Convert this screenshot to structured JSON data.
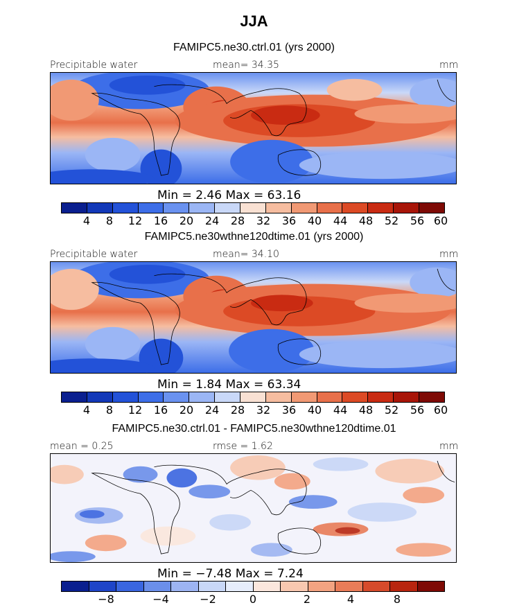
{
  "title": "JJA",
  "colors": {
    "sequential": [
      "#0a1f8f",
      "#1238b8",
      "#2352d8",
      "#3d6ee8",
      "#6a92f0",
      "#9bb6f5",
      "#c9d8f8",
      "#f9e1d3",
      "#f6bda0",
      "#f19974",
      "#e8704a",
      "#dc4a25",
      "#c92b12",
      "#a81508",
      "#7e0a05"
    ],
    "diverging": [
      "#0a1f8f",
      "#1f45c8",
      "#3a66e0",
      "#6b8fea",
      "#9db4f2",
      "#c8d7f7",
      "#e6edfb",
      "#fbe7dd",
      "#f8c8b0",
      "#f3a381",
      "#e97c58",
      "#d64b2b",
      "#b8250f",
      "#7e0a05"
    ]
  },
  "panels": [
    {
      "title": "FAMIPC5.ne30.ctrl.01 (yrs 2000)",
      "left_label": "Precipitable water",
      "center_label": "mean=  34.35",
      "right_label": "mm",
      "min_max": "Min =   2.46 Max =  63.16",
      "colorbar_ticks": [
        "4",
        "8",
        "12",
        "16",
        "20",
        "24",
        "28",
        "32",
        "36",
        "40",
        "44",
        "48",
        "52",
        "56",
        "60"
      ]
    },
    {
      "title": "FAMIPC5.ne30wthne120dtime.01 (yrs 2000)",
      "left_label": "Precipitable water",
      "center_label": "mean=  34.10",
      "right_label": "mm",
      "min_max": "Min =   1.84 Max =  63.34",
      "colorbar_ticks": [
        "4",
        "8",
        "12",
        "16",
        "20",
        "24",
        "28",
        "32",
        "36",
        "40",
        "44",
        "48",
        "52",
        "56",
        "60"
      ]
    },
    {
      "title": "FAMIPC5.ne30.ctrl.01 - FAMIPC5.ne30wthne120dtime.01",
      "left_label": "mean =   0.25",
      "center_label": "rmse =   1.62",
      "right_label": "mm",
      "min_max": "Min =  −7.48 Max =   7.24",
      "colorbar_ticks": [
        "−8",
        "−4",
        "−2",
        "0",
        "2",
        "4",
        "8"
      ]
    }
  ],
  "chart_data": [
    {
      "type": "heatmap",
      "title": "FAMIPC5.ne30.ctrl.01 (yrs 2000)",
      "variable": "Precipitable water",
      "units": "mm",
      "mean": 34.35,
      "min": 2.46,
      "max": 63.16,
      "colorbar_levels": [
        4,
        8,
        12,
        16,
        20,
        24,
        28,
        32,
        36,
        40,
        44,
        48,
        52,
        56,
        60
      ]
    },
    {
      "type": "heatmap",
      "title": "FAMIPC5.ne30wthne120dtime.01 (yrs 2000)",
      "variable": "Precipitable water",
      "units": "mm",
      "mean": 34.1,
      "min": 1.84,
      "max": 63.34,
      "colorbar_levels": [
        4,
        8,
        12,
        16,
        20,
        24,
        28,
        32,
        36,
        40,
        44,
        48,
        52,
        56,
        60
      ]
    },
    {
      "type": "heatmap",
      "title": "FAMIPC5.ne30.ctrl.01 - FAMIPC5.ne30wthne120dtime.01",
      "units": "mm",
      "mean": 0.25,
      "rmse": 1.62,
      "min": -7.48,
      "max": 7.24,
      "colorbar_labels": [
        -8,
        -4,
        -2,
        0,
        2,
        4,
        8
      ]
    }
  ]
}
